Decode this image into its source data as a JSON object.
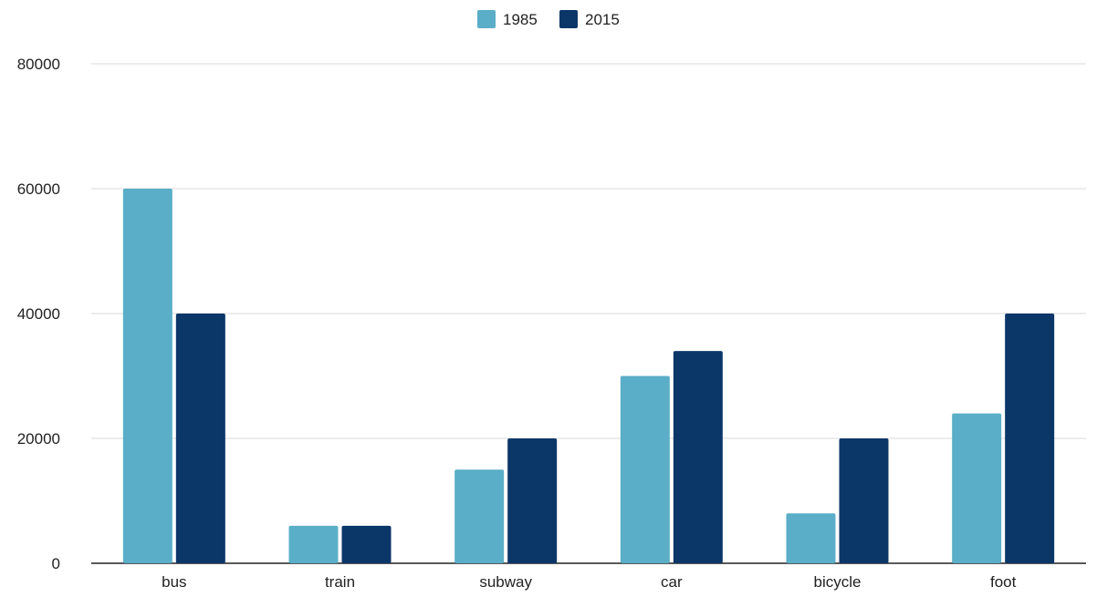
{
  "chart_data": {
    "type": "bar",
    "title": "",
    "xlabel": "",
    "ylabel": "",
    "categories": [
      "bus",
      "train",
      "subway",
      "car",
      "bicycle",
      "foot"
    ],
    "series": [
      {
        "name": "1985",
        "values": [
          60000,
          6000,
          15000,
          30000,
          8000,
          24000
        ],
        "color": "#5aaec8"
      },
      {
        "name": "2015",
        "values": [
          40000,
          6000,
          20000,
          34000,
          20000,
          40000
        ],
        "color": "#0b3668"
      }
    ],
    "ylim": [
      0,
      80000
    ],
    "yticks": [
      "0",
      "20000",
      "40000",
      "60000",
      "80000"
    ],
    "grid": true,
    "legend_position": "top-center"
  },
  "colors": {
    "gridline": "#d9d9d9",
    "baseline": "#222222"
  }
}
